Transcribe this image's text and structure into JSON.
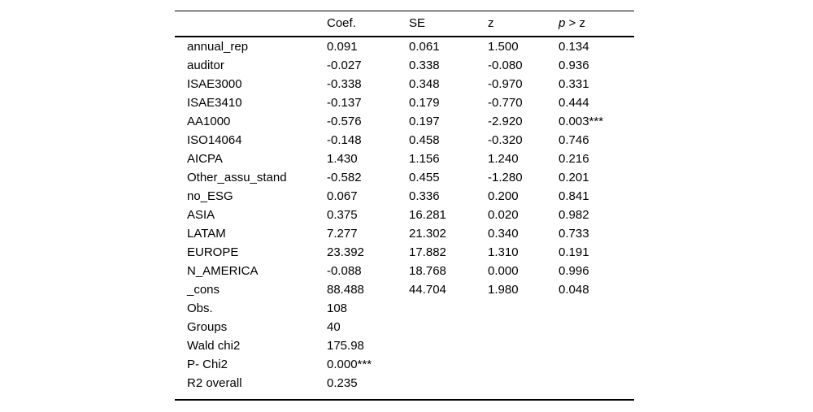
{
  "table": {
    "headers": {
      "label": "",
      "coef": "Coef.",
      "se": "SE",
      "z": "z",
      "p_italic": "p",
      "p_rest": " > z"
    },
    "rows": [
      {
        "label": "annual_rep",
        "coef": "0.091",
        "se": "0.061",
        "z": "1.500",
        "p": "0.134"
      },
      {
        "label": "auditor",
        "coef": "-0.027",
        "se": "0.338",
        "z": "-0.080",
        "p": "0.936"
      },
      {
        "label": "ISAE3000",
        "coef": "-0.338",
        "se": "0.348",
        "z": "-0.970",
        "p": "0.331"
      },
      {
        "label": "ISAE3410",
        "coef": "-0.137",
        "se": "0.179",
        "z": "-0.770",
        "p": "0.444"
      },
      {
        "label": "AA1000",
        "coef": "-0.576",
        "se": "0.197",
        "z": "-2.920",
        "p": "0.003***"
      },
      {
        "label": "ISO14064",
        "coef": "-0.148",
        "se": "0.458",
        "z": "-0.320",
        "p": "0.746"
      },
      {
        "label": "AICPA",
        "coef": "1.430",
        "se": "1.156",
        "z": "1.240",
        "p": "0.216"
      },
      {
        "label": "Other_assu_stand",
        "coef": "-0.582",
        "se": "0.455",
        "z": "-1.280",
        "p": "0.201"
      },
      {
        "label": "no_ESG",
        "coef": "0.067",
        "se": "0.336",
        "z": "0.200",
        "p": "0.841"
      },
      {
        "label": "ASIA",
        "coef": "0.375",
        "se": "16.281",
        "z": "0.020",
        "p": "0.982"
      },
      {
        "label": "LATAM",
        "coef": "7.277",
        "se": "21.302",
        "z": "0.340",
        "p": "0.733"
      },
      {
        "label": "EUROPE",
        "coef": "23.392",
        "se": "17.882",
        "z": "1.310",
        "p": "0.191"
      },
      {
        "label": "N_AMERICA",
        "coef": "-0.088",
        "se": "18.768",
        "z": "0.000",
        "p": "0.996"
      },
      {
        "label": "_cons",
        "coef": "88.488",
        "se": "44.704",
        "z": "1.980",
        "p": "0.048"
      }
    ],
    "stats": [
      {
        "label": "Obs.",
        "value": "108"
      },
      {
        "label": "Groups",
        "value": "40"
      },
      {
        "label": "Wald chi2",
        "value": "175.98"
      },
      {
        "label": "P- Chi2",
        "value": "0.000***"
      },
      {
        "label": "R2 overall",
        "value": "0.235"
      }
    ]
  }
}
